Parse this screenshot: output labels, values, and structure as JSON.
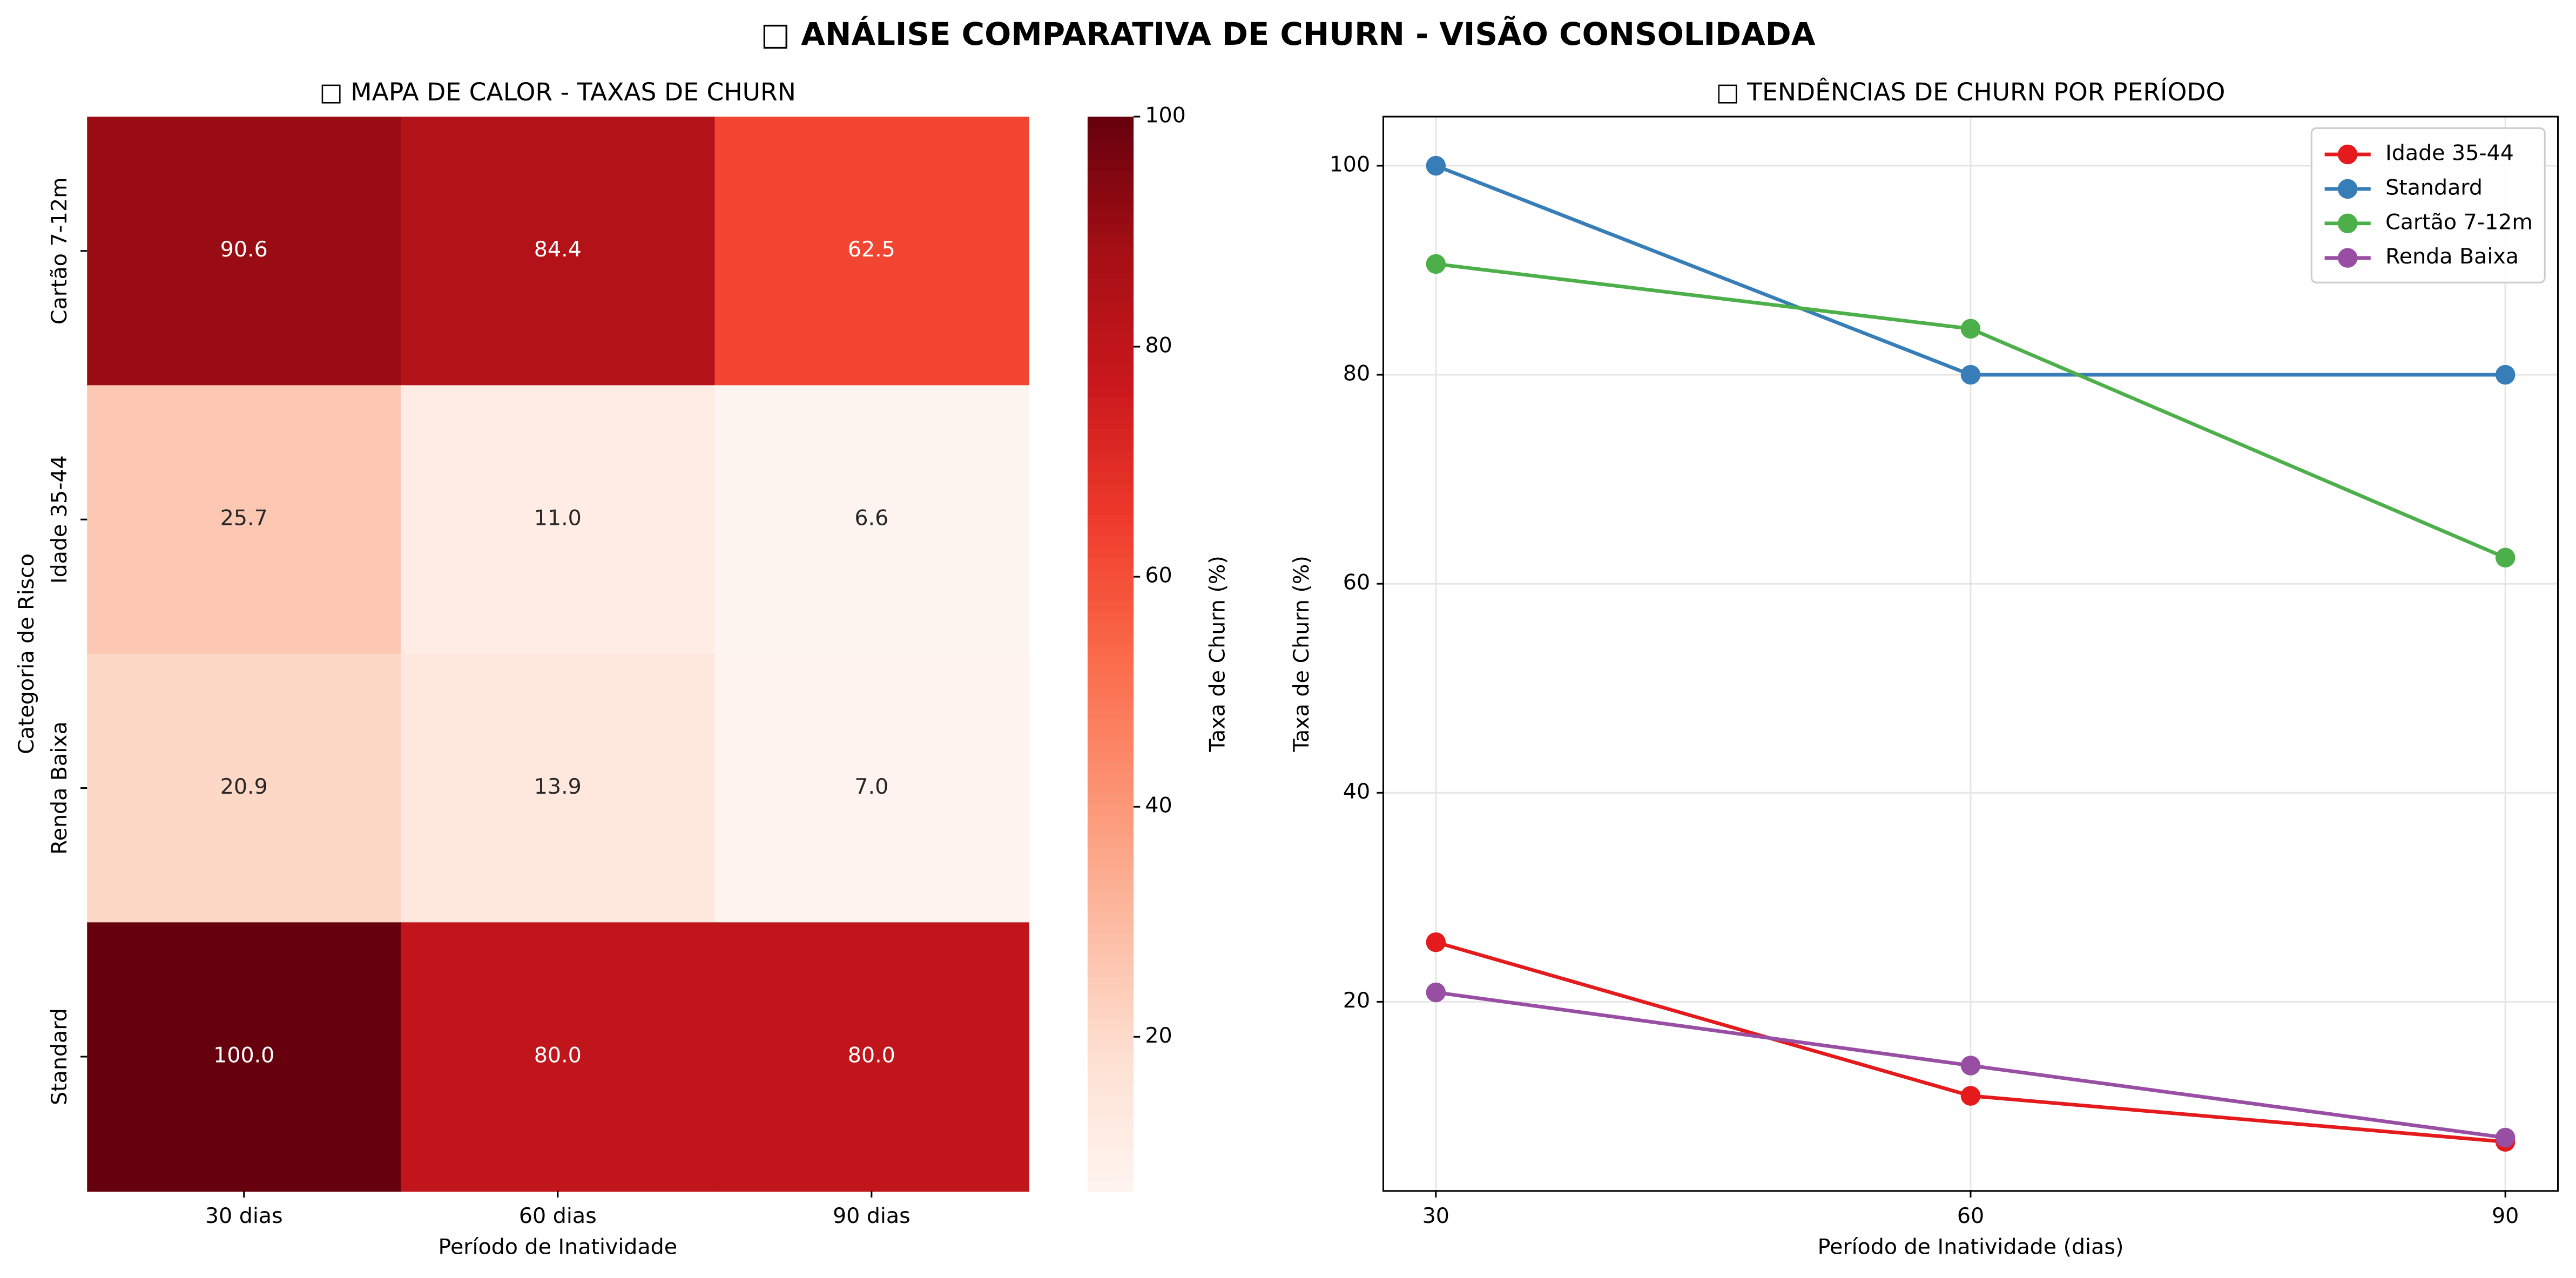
{
  "title": "□ ANÁLISE COMPARATIVA DE CHURN - VISÃO CONSOLIDADA",
  "chart_data": [
    {
      "type": "heatmap",
      "title": "□ MAPA DE CALOR - TAXAS DE CHURN",
      "x_label": "Período de Inatividade",
      "y_label": "Categoria de Risco",
      "categories": [
        "30 dias",
        "60 dias",
        "90 dias"
      ],
      "rows": [
        "Cartão 7-12m",
        "Idade 35-44",
        "Renda Baixa",
        "Standard"
      ],
      "values": [
        [
          90.6,
          84.4,
          62.5
        ],
        [
          25.7,
          11.0,
          6.6
        ],
        [
          20.9,
          13.9,
          7.0
        ],
        [
          100,
          80,
          80
        ]
      ],
      "value_labels": [
        [
          "90.6",
          "84.4",
          "62.5"
        ],
        [
          "25.7",
          "11.0",
          "6.6"
        ],
        [
          "20.9",
          "13.9",
          "7.0"
        ],
        [
          "100.0",
          "80.0",
          "80.0"
        ]
      ],
      "colormap": "Reds",
      "colorbar_label": "Taxa de Churn (%)",
      "clim": [
        6.6,
        100
      ],
      "cticks": [
        20,
        40,
        60,
        80,
        100
      ]
    },
    {
      "type": "line",
      "title": "□ TENDÊNCIAS DE CHURN POR PERÍODO",
      "x_label": "Período de Inatividade (dias)",
      "y_label": "Taxa de Churn (%)",
      "x": [
        30,
        60,
        90
      ],
      "xlim": [
        27.05,
        92.95
      ],
      "xticks": [
        30,
        60,
        90
      ],
      "ylim": [
        1.9,
        104.7
      ],
      "yticks": [
        20,
        40,
        60,
        80,
        100
      ],
      "grid": true,
      "legend": "upper right",
      "series": [
        {
          "name": "Idade 35-44",
          "color": "#e41a1c",
          "values": [
            25.7,
            11.0,
            6.6
          ]
        },
        {
          "name": "Standard",
          "color": "#377eb8",
          "values": [
            100,
            80,
            80
          ]
        },
        {
          "name": "Cartão 7-12m",
          "color": "#4daf4a",
          "values": [
            90.6,
            84.4,
            62.5
          ]
        },
        {
          "name": "Renda Baixa",
          "color": "#984ea3",
          "values": [
            20.9,
            13.9,
            7.0
          ]
        }
      ]
    }
  ]
}
